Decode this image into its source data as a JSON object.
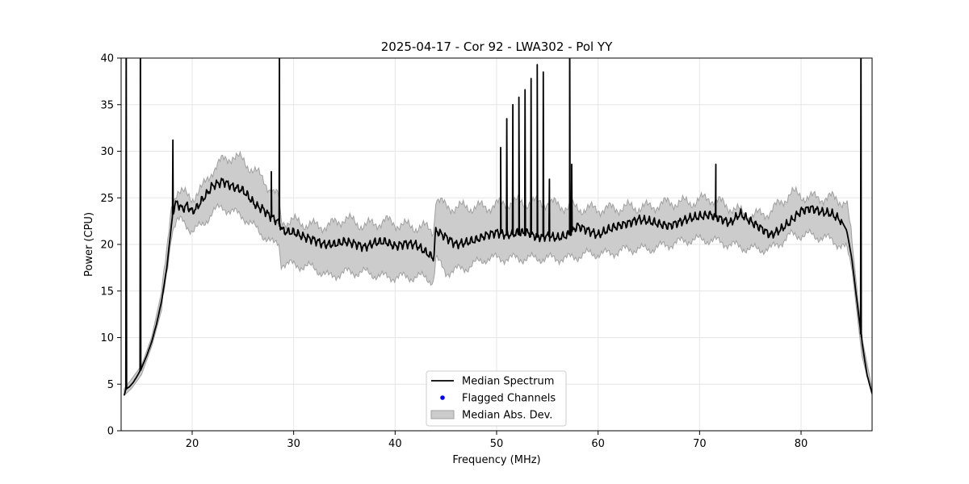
{
  "chart_data": {
    "type": "line",
    "title": "2025-04-17 - Cor 92 - LWA302 - Pol YY",
    "xlabel": "Frequency (MHz)",
    "ylabel": "Power (CPU)",
    "xlim": [
      13,
      87
    ],
    "ylim": [
      0,
      40
    ],
    "xticks": [
      20,
      30,
      40,
      50,
      60,
      70,
      80
    ],
    "yticks": [
      0,
      5,
      10,
      15,
      20,
      25,
      30,
      35,
      40
    ],
    "grid": true,
    "legend_position": "bottom-center",
    "colors": {
      "median": "#000000",
      "flagged": "#0000ff",
      "mad_fill": "#cccccc",
      "mad_edge": "#a0a0a0",
      "grid": "#e6e6e6"
    },
    "series": [
      {
        "name": "Median Spectrum",
        "x": [
          13.3,
          13.5,
          13.8,
          14.2,
          14.6,
          15.0,
          15.5,
          16.0,
          16.5,
          17.0,
          17.5,
          17.8,
          18.0,
          18.2,
          18.5,
          19.0,
          19.5,
          20.0,
          20.5,
          21.0,
          21.5,
          22.0,
          22.5,
          23.0,
          23.5,
          24.0,
          24.5,
          25.0,
          25.5,
          26.0,
          26.5,
          27.0,
          27.5,
          28.0,
          28.5,
          29.0,
          30.0,
          31.0,
          32.0,
          33.0,
          34.0,
          35.0,
          36.0,
          37.0,
          38.0,
          39.0,
          40.0,
          41.0,
          42.0,
          43.0,
          43.8,
          44.0,
          45.0,
          46.0,
          47.0,
          48.0,
          49.0,
          50.0,
          51.0,
          52.0,
          53.0,
          54.0,
          55.0,
          56.0,
          57.0,
          58.0,
          59.0,
          60.0,
          61.0,
          62.0,
          63.0,
          64.0,
          65.0,
          66.0,
          67.0,
          68.0,
          69.0,
          70.0,
          71.0,
          72.0,
          73.0,
          74.0,
          75.0,
          76.0,
          77.0,
          78.0,
          79.0,
          80.0,
          81.0,
          82.0,
          83.0,
          84.0,
          84.5,
          85.0,
          85.5,
          86.0,
          86.5,
          87.0
        ],
        "values": [
          3.8,
          4.5,
          4.7,
          5.2,
          5.9,
          6.7,
          8.0,
          9.5,
          11.5,
          14.0,
          17.5,
          20.5,
          22.5,
          24.0,
          24.5,
          23.8,
          24.2,
          23.5,
          24.0,
          24.8,
          25.5,
          26.3,
          26.5,
          26.8,
          26.5,
          26.2,
          26.0,
          25.8,
          25.2,
          24.5,
          24.0,
          23.8,
          23.2,
          22.8,
          22.4,
          21.4,
          21.3,
          20.8,
          20.5,
          20.0,
          20.0,
          20.3,
          20.1,
          19.7,
          20.2,
          20.3,
          19.8,
          20.1,
          20.0,
          19.2,
          18.5,
          21.5,
          20.8,
          20.0,
          20.2,
          20.5,
          21.0,
          21.3,
          21.0,
          21.2,
          21.3,
          20.8,
          20.9,
          20.7,
          21.0,
          22.0,
          21.5,
          21.0,
          21.6,
          22.0,
          22.3,
          22.7,
          22.5,
          22.2,
          22.0,
          22.4,
          22.8,
          23.0,
          23.2,
          22.8,
          22.3,
          23.3,
          22.5,
          21.8,
          21.0,
          21.6,
          22.5,
          23.6,
          23.9,
          23.5,
          23.3,
          22.5,
          21.5,
          18.5,
          14.0,
          9.5,
          6.0,
          4.0
        ],
        "spikes": [
          [
            13.5,
            40
          ],
          [
            14.9,
            40
          ],
          [
            18.1,
            31.2
          ],
          [
            27.8,
            27.8
          ],
          [
            28.6,
            40
          ],
          [
            50.4,
            30.4
          ],
          [
            51.0,
            33.5
          ],
          [
            51.6,
            35.0
          ],
          [
            52.2,
            35.8
          ],
          [
            52.8,
            36.6
          ],
          [
            53.4,
            37.8
          ],
          [
            54.0,
            39.3
          ],
          [
            54.6,
            38.5
          ],
          [
            55.2,
            27.0
          ],
          [
            57.2,
            40
          ],
          [
            57.4,
            28.6
          ],
          [
            71.6,
            28.6
          ],
          [
            85.9,
            40
          ]
        ]
      },
      {
        "name": "Flagged Channels",
        "x": [],
        "values": []
      },
      {
        "name": "Median Abs. Dev.",
        "x": [
          13.3,
          14.0,
          15.0,
          16.0,
          17.0,
          17.5,
          18.0,
          18.5,
          19.0,
          20.0,
          21.0,
          22.0,
          23.0,
          24.0,
          25.0,
          26.0,
          27.0,
          28.0,
          28.6,
          28.7,
          30.0,
          32.0,
          33.5,
          35.0,
          37.0,
          39.0,
          41.0,
          43.0,
          43.8,
          44.0,
          45.0,
          47.0,
          49.0,
          51.0,
          53.0,
          55.0,
          57.0,
          59.0,
          61.0,
          63.0,
          65.0,
          67.0,
          69.0,
          71.0,
          73.0,
          75.0,
          77.0,
          79.0,
          81.0,
          83.0,
          84.5,
          85.0,
          86.0,
          87.0
        ],
        "upper": [
          4.5,
          5.5,
          7.0,
          10.0,
          15.0,
          19.0,
          24.5,
          25.8,
          25.5,
          25.0,
          26.0,
          28.0,
          29.0,
          29.5,
          29.0,
          28.0,
          27.0,
          25.5,
          25.0,
          22.5,
          22.5,
          22.0,
          22.0,
          22.8,
          22.0,
          22.5,
          22.0,
          21.8,
          21.5,
          25.0,
          24.0,
          24.0,
          24.0,
          24.5,
          24.5,
          24.5,
          24.0,
          23.8,
          23.8,
          24.0,
          24.0,
          24.5,
          24.5,
          25.0,
          24.0,
          23.0,
          23.5,
          25.5,
          25.0,
          25.0,
          24.5,
          20.5,
          10.0,
          4.5
        ],
        "lower": [
          3.8,
          4.5,
          6.0,
          9.0,
          13.0,
          17.0,
          21.5,
          22.5,
          22.5,
          21.5,
          22.0,
          23.5,
          24.0,
          23.5,
          23.0,
          22.0,
          21.0,
          20.0,
          20.2,
          18.0,
          17.8,
          17.5,
          16.5,
          17.0,
          17.0,
          16.5,
          16.5,
          16.5,
          16.0,
          18.5,
          17.0,
          17.5,
          18.5,
          18.5,
          18.5,
          18.5,
          18.5,
          19.0,
          19.0,
          19.5,
          19.5,
          20.0,
          20.5,
          20.5,
          20.0,
          19.5,
          19.5,
          21.0,
          21.0,
          20.5,
          19.5,
          17.5,
          8.0,
          3.8
        ]
      }
    ],
    "legend": [
      {
        "label": "Median Spectrum",
        "marker": "line"
      },
      {
        "label": "Flagged Channels",
        "marker": "dot"
      },
      {
        "label": "Median Abs. Dev.",
        "marker": "patch"
      }
    ]
  }
}
